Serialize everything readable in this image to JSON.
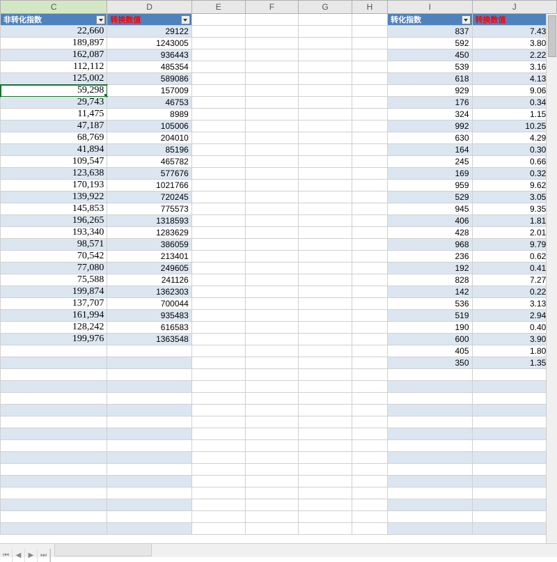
{
  "column_letters": [
    "C",
    "D",
    "E",
    "F",
    "G",
    "H",
    "I",
    "J"
  ],
  "selected_column": "C",
  "headers": {
    "C": {
      "label": "非转化指数",
      "color": "white",
      "filter": true
    },
    "D": {
      "label": "转换数值",
      "color": "red",
      "filter": true
    },
    "I": {
      "label": "转化指数",
      "color": "white",
      "filter": true
    },
    "J": {
      "label": "转换数值",
      "color": "red",
      "filter": true
    }
  },
  "selected_cell": {
    "row": 5,
    "col": "C"
  },
  "table_left": {
    "columns": [
      "C",
      "D"
    ],
    "rows": [
      {
        "C": "22,660",
        "D": "29122"
      },
      {
        "C": "189,897",
        "D": "1243005"
      },
      {
        "C": "162,087",
        "D": "936443"
      },
      {
        "C": "112,112",
        "D": "485354"
      },
      {
        "C": "125,002",
        "D": "589086"
      },
      {
        "C": "59,298",
        "D": "157009"
      },
      {
        "C": "29,743",
        "D": "46753"
      },
      {
        "C": "11,475",
        "D": "8989"
      },
      {
        "C": "47,187",
        "D": "105006"
      },
      {
        "C": "68,769",
        "D": "204010"
      },
      {
        "C": "41,894",
        "D": "85196"
      },
      {
        "C": "109,547",
        "D": "465782"
      },
      {
        "C": "123,638",
        "D": "577676"
      },
      {
        "C": "170,193",
        "D": "1021766"
      },
      {
        "C": "139,922",
        "D": "720245"
      },
      {
        "C": "145,853",
        "D": "775573"
      },
      {
        "C": "196,265",
        "D": "1318593"
      },
      {
        "C": "193,340",
        "D": "1283629"
      },
      {
        "C": "98,571",
        "D": "386059"
      },
      {
        "C": "70,542",
        "D": "213401"
      },
      {
        "C": "77,080",
        "D": "249605"
      },
      {
        "C": "75,588",
        "D": "241126"
      },
      {
        "C": "199,874",
        "D": "1362303"
      },
      {
        "C": "137,707",
        "D": "700044"
      },
      {
        "C": "161,994",
        "D": "935483"
      },
      {
        "C": "128,242",
        "D": "616583"
      },
      {
        "C": "199,976",
        "D": "1363548"
      }
    ]
  },
  "table_right": {
    "columns": [
      "I",
      "J"
    ],
    "rows": [
      {
        "I": "837",
        "J": "7.43%"
      },
      {
        "I": "592",
        "J": "3.80%"
      },
      {
        "I": "450",
        "J": "2.22%"
      },
      {
        "I": "539",
        "J": "3.16%"
      },
      {
        "I": "618",
        "J": "4.13%"
      },
      {
        "I": "929",
        "J": "9.06%"
      },
      {
        "I": "176",
        "J": "0.34%"
      },
      {
        "I": "324",
        "J": "1.15%"
      },
      {
        "I": "992",
        "J": "10.25%"
      },
      {
        "I": "630",
        "J": "4.29%"
      },
      {
        "I": "164",
        "J": "0.30%"
      },
      {
        "I": "245",
        "J": "0.66%"
      },
      {
        "I": "169",
        "J": "0.32%"
      },
      {
        "I": "959",
        "J": "9.62%"
      },
      {
        "I": "529",
        "J": "3.05%"
      },
      {
        "I": "945",
        "J": "9.35%"
      },
      {
        "I": "406",
        "J": "1.81%"
      },
      {
        "I": "428",
        "J": "2.01%"
      },
      {
        "I": "968",
        "J": "9.79%"
      },
      {
        "I": "236",
        "J": "0.62%"
      },
      {
        "I": "192",
        "J": "0.41%"
      },
      {
        "I": "828",
        "J": "7.27%"
      },
      {
        "I": "142",
        "J": "0.22%"
      },
      {
        "I": "536",
        "J": "3.13%"
      },
      {
        "I": "519",
        "J": "2.94%"
      },
      {
        "I": "190",
        "J": "0.40%"
      },
      {
        "I": "600",
        "J": "3.90%"
      },
      {
        "I": "405",
        "J": "1.80%"
      },
      {
        "I": "350",
        "J": "1.35%"
      }
    ]
  },
  "empty_band_rows": 14,
  "colors": {
    "header_bg": "#4f81bd",
    "band_even": "#dce6f1",
    "band_odd": "#ffffff",
    "grid_border": "#d0d0d0",
    "red_text": "#ff0000",
    "selection": "#1a7030"
  }
}
